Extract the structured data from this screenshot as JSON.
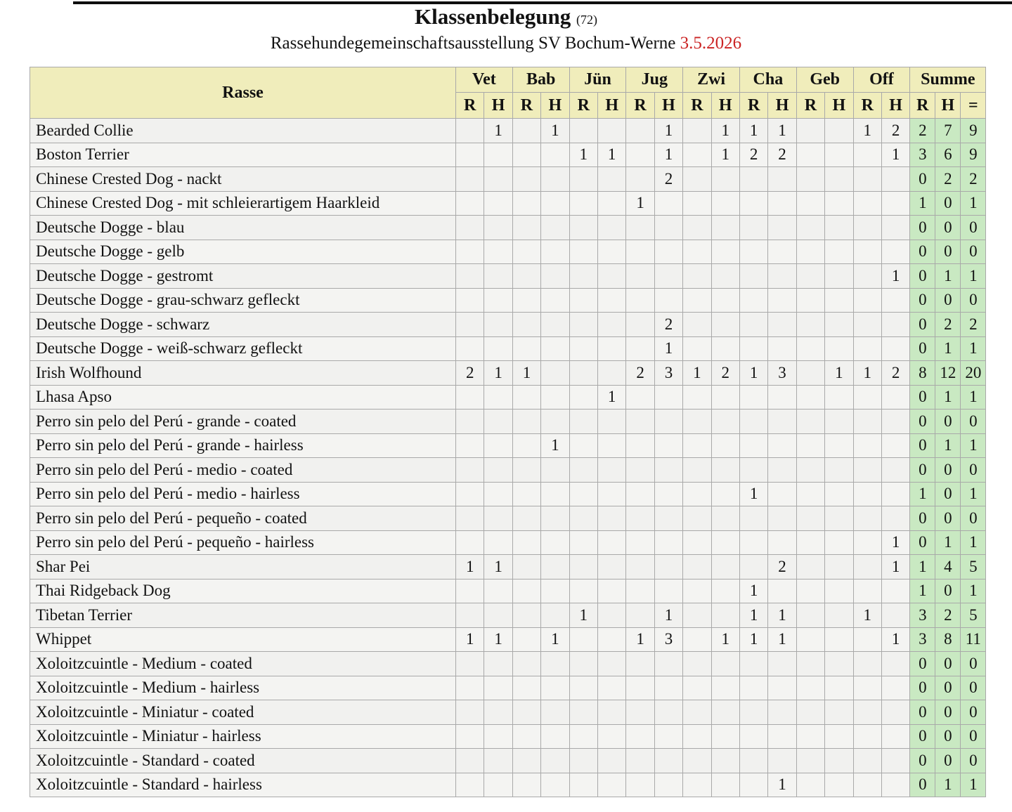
{
  "title": {
    "main": "Klassenbelegung",
    "count": "(72)",
    "subtitle": "Rassehundegemeinschaftsausstellung SV Bochum-Werne",
    "date": "3.5.2026"
  },
  "colors": {
    "header_bg": "#f0edbb",
    "sum_bg": "#c9e9c2",
    "row_bg": "#f1f1ef",
    "border": "#a9a9a9",
    "date_red": "#cb2424"
  },
  "table": {
    "rasse_label": "Rasse",
    "groups": [
      "Vet",
      "Bab",
      "Jün",
      "Jug",
      "Zwi",
      "Cha",
      "Geb",
      "Off"
    ],
    "subcols": [
      "R",
      "H"
    ],
    "sum": {
      "label": "Summe",
      "subcols": [
        "R",
        "H",
        "="
      ]
    },
    "rows": [
      {
        "name": "Bearded Collie",
        "values": [
          "",
          "1",
          "",
          "1",
          "",
          "",
          "",
          "1",
          "",
          "1",
          "1",
          "1",
          "",
          "",
          "1",
          "2"
        ],
        "sum": [
          "2",
          "7",
          "9"
        ]
      },
      {
        "name": "Boston Terrier",
        "values": [
          "",
          "",
          "",
          "",
          "1",
          "1",
          "",
          "1",
          "",
          "1",
          "2",
          "2",
          "",
          "",
          "",
          "1"
        ],
        "sum": [
          "3",
          "6",
          "9"
        ]
      },
      {
        "name": "Chinese Crested Dog - nackt",
        "values": [
          "",
          "",
          "",
          "",
          "",
          "",
          "",
          "2",
          "",
          "",
          "",
          "",
          "",
          "",
          "",
          ""
        ],
        "sum": [
          "0",
          "2",
          "2"
        ]
      },
      {
        "name": "Chinese Crested Dog - mit schleierartigem Haarkleid",
        "values": [
          "",
          "",
          "",
          "",
          "",
          "",
          "1",
          "",
          "",
          "",
          "",
          "",
          "",
          "",
          "",
          ""
        ],
        "sum": [
          "1",
          "0",
          "1"
        ]
      },
      {
        "name": "Deutsche Dogge - blau",
        "values": [
          "",
          "",
          "",
          "",
          "",
          "",
          "",
          "",
          "",
          "",
          "",
          "",
          "",
          "",
          "",
          ""
        ],
        "sum": [
          "0",
          "0",
          "0"
        ]
      },
      {
        "name": "Deutsche Dogge - gelb",
        "values": [
          "",
          "",
          "",
          "",
          "",
          "",
          "",
          "",
          "",
          "",
          "",
          "",
          "",
          "",
          "",
          ""
        ],
        "sum": [
          "0",
          "0",
          "0"
        ]
      },
      {
        "name": "Deutsche Dogge - gestromt",
        "values": [
          "",
          "",
          "",
          "",
          "",
          "",
          "",
          "",
          "",
          "",
          "",
          "",
          "",
          "",
          "",
          "1"
        ],
        "sum": [
          "0",
          "1",
          "1"
        ]
      },
      {
        "name": "Deutsche Dogge - grau-schwarz gefleckt",
        "values": [
          "",
          "",
          "",
          "",
          "",
          "",
          "",
          "",
          "",
          "",
          "",
          "",
          "",
          "",
          "",
          ""
        ],
        "sum": [
          "0",
          "0",
          "0"
        ]
      },
      {
        "name": "Deutsche Dogge - schwarz",
        "values": [
          "",
          "",
          "",
          "",
          "",
          "",
          "",
          "2",
          "",
          "",
          "",
          "",
          "",
          "",
          "",
          ""
        ],
        "sum": [
          "0",
          "2",
          "2"
        ]
      },
      {
        "name": "Deutsche Dogge - weiß-schwarz gefleckt",
        "values": [
          "",
          "",
          "",
          "",
          "",
          "",
          "",
          "1",
          "",
          "",
          "",
          "",
          "",
          "",
          "",
          ""
        ],
        "sum": [
          "0",
          "1",
          "1"
        ]
      },
      {
        "name": "Irish Wolfhound",
        "values": [
          "2",
          "1",
          "1",
          "",
          "",
          "",
          "2",
          "3",
          "1",
          "2",
          "1",
          "3",
          "",
          "1",
          "1",
          "2"
        ],
        "sum": [
          "8",
          "12",
          "20"
        ]
      },
      {
        "name": "Lhasa Apso",
        "values": [
          "",
          "",
          "",
          "",
          "",
          "1",
          "",
          "",
          "",
          "",
          "",
          "",
          "",
          "",
          "",
          ""
        ],
        "sum": [
          "0",
          "1",
          "1"
        ]
      },
      {
        "name": "Perro sin pelo del Perú - grande - coated",
        "values": [
          "",
          "",
          "",
          "",
          "",
          "",
          "",
          "",
          "",
          "",
          "",
          "",
          "",
          "",
          "",
          ""
        ],
        "sum": [
          "0",
          "0",
          "0"
        ]
      },
      {
        "name": "Perro sin pelo del Perú - grande - hairless",
        "values": [
          "",
          "",
          "",
          "1",
          "",
          "",
          "",
          "",
          "",
          "",
          "",
          "",
          "",
          "",
          "",
          ""
        ],
        "sum": [
          "0",
          "1",
          "1"
        ]
      },
      {
        "name": "Perro sin pelo del Perú - medio - coated",
        "values": [
          "",
          "",
          "",
          "",
          "",
          "",
          "",
          "",
          "",
          "",
          "",
          "",
          "",
          "",
          "",
          ""
        ],
        "sum": [
          "0",
          "0",
          "0"
        ]
      },
      {
        "name": "Perro sin pelo del Perú - medio - hairless",
        "values": [
          "",
          "",
          "",
          "",
          "",
          "",
          "",
          "",
          "",
          "",
          "1",
          "",
          "",
          "",
          "",
          ""
        ],
        "sum": [
          "1",
          "0",
          "1"
        ]
      },
      {
        "name": "Perro sin pelo del Perú - pequeño - coated",
        "values": [
          "",
          "",
          "",
          "",
          "",
          "",
          "",
          "",
          "",
          "",
          "",
          "",
          "",
          "",
          "",
          ""
        ],
        "sum": [
          "0",
          "0",
          "0"
        ]
      },
      {
        "name": "Perro sin pelo del Perú - pequeño - hairless",
        "values": [
          "",
          "",
          "",
          "",
          "",
          "",
          "",
          "",
          "",
          "",
          "",
          "",
          "",
          "",
          "",
          "1"
        ],
        "sum": [
          "0",
          "1",
          "1"
        ]
      },
      {
        "name": "Shar Pei",
        "values": [
          "1",
          "1",
          "",
          "",
          "",
          "",
          "",
          "",
          "",
          "",
          "",
          "2",
          "",
          "",
          "",
          "1"
        ],
        "sum": [
          "1",
          "4",
          "5"
        ]
      },
      {
        "name": "Thai Ridgeback Dog",
        "values": [
          "",
          "",
          "",
          "",
          "",
          "",
          "",
          "",
          "",
          "",
          "1",
          "",
          "",
          "",
          "",
          ""
        ],
        "sum": [
          "1",
          "0",
          "1"
        ]
      },
      {
        "name": "Tibetan Terrier",
        "values": [
          "",
          "",
          "",
          "",
          "1",
          "",
          "",
          "1",
          "",
          "",
          "1",
          "1",
          "",
          "",
          "1",
          ""
        ],
        "sum": [
          "3",
          "2",
          "5"
        ]
      },
      {
        "name": "Whippet",
        "values": [
          "1",
          "1",
          "",
          "1",
          "",
          "",
          "1",
          "3",
          "",
          "1",
          "1",
          "1",
          "",
          "",
          "",
          "1"
        ],
        "sum": [
          "3",
          "8",
          "11"
        ]
      },
      {
        "name": "Xoloitzcuintle - Medium - coated",
        "values": [
          "",
          "",
          "",
          "",
          "",
          "",
          "",
          "",
          "",
          "",
          "",
          "",
          "",
          "",
          "",
          ""
        ],
        "sum": [
          "0",
          "0",
          "0"
        ]
      },
      {
        "name": "Xoloitzcuintle - Medium - hairless",
        "values": [
          "",
          "",
          "",
          "",
          "",
          "",
          "",
          "",
          "",
          "",
          "",
          "",
          "",
          "",
          "",
          ""
        ],
        "sum": [
          "0",
          "0",
          "0"
        ]
      },
      {
        "name": "Xoloitzcuintle - Miniatur - coated",
        "values": [
          "",
          "",
          "",
          "",
          "",
          "",
          "",
          "",
          "",
          "",
          "",
          "",
          "",
          "",
          "",
          ""
        ],
        "sum": [
          "0",
          "0",
          "0"
        ]
      },
      {
        "name": "Xoloitzcuintle - Miniatur - hairless",
        "values": [
          "",
          "",
          "",
          "",
          "",
          "",
          "",
          "",
          "",
          "",
          "",
          "",
          "",
          "",
          "",
          ""
        ],
        "sum": [
          "0",
          "0",
          "0"
        ]
      },
      {
        "name": "Xoloitzcuintle - Standard - coated",
        "values": [
          "",
          "",
          "",
          "",
          "",
          "",
          "",
          "",
          "",
          "",
          "",
          "",
          "",
          "",
          "",
          ""
        ],
        "sum": [
          "0",
          "0",
          "0"
        ]
      },
      {
        "name": "Xoloitzcuintle - Standard - hairless",
        "values": [
          "",
          "",
          "",
          "",
          "",
          "",
          "",
          "",
          "",
          "",
          "",
          "1",
          "",
          "",
          "",
          ""
        ],
        "sum": [
          "0",
          "1",
          "1"
        ]
      }
    ]
  }
}
